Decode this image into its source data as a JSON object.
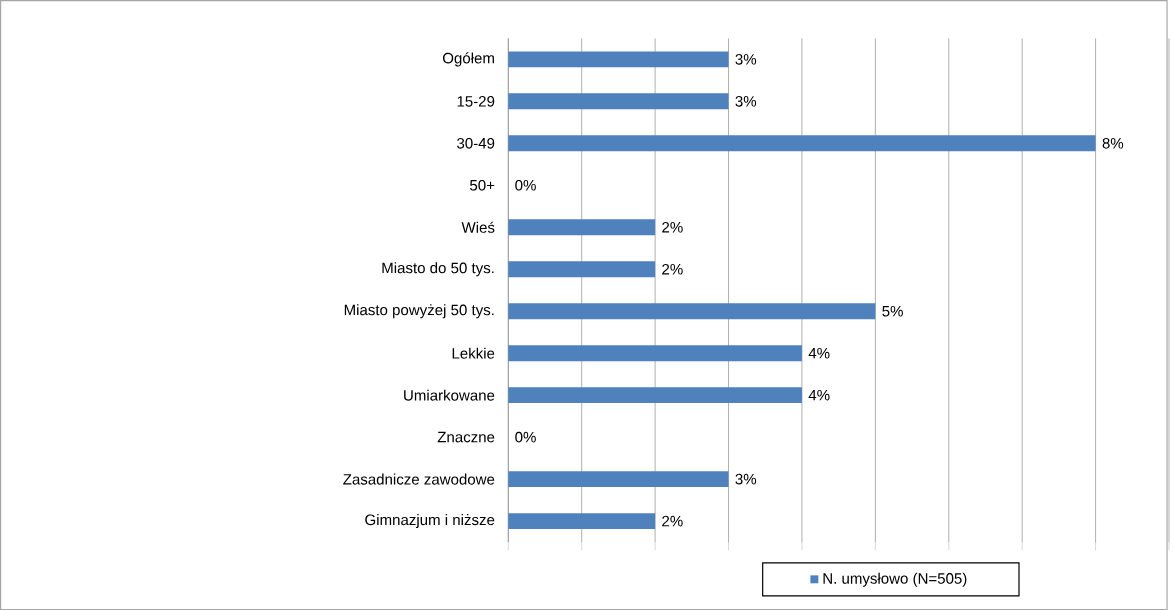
{
  "chart_data": {
    "type": "bar",
    "orientation": "horizontal",
    "categories": [
      "Ogółem",
      "15-29",
      "30-49",
      "50+",
      "Wieś",
      "Miasto do 50 tys.",
      "Miasto powyżej 50 tys.",
      "Lekkie",
      "Umiarkowane",
      "Znaczne",
      "Zasadnicze zawodowe",
      "Gimnazjum i niższe"
    ],
    "series": [
      {
        "name": "N. umysłowo (N=505)",
        "color": "#4f81bd",
        "values": [
          3,
          3,
          8,
          0,
          2,
          2,
          5,
          4,
          4,
          0,
          3,
          2
        ],
        "value_labels": [
          "3%",
          "3%",
          "8%",
          "0%",
          "2%",
          "2%",
          "5%",
          "4%",
          "4%",
          "0%",
          "3%",
          "2%"
        ]
      }
    ],
    "xlim": [
      0,
      9
    ],
    "xticks": [
      {
        "value": 0,
        "label": null
      },
      {
        "value": 1,
        "label": null
      },
      {
        "value": 2,
        "label": null
      },
      {
        "value": 3,
        "label": null
      },
      {
        "value": 4,
        "label": null
      },
      {
        "value": 5,
        "label": null
      },
      {
        "value": 6,
        "label": null
      },
      {
        "value": 7,
        "label": null
      },
      {
        "value": 8,
        "label": null
      },
      {
        "value": 9,
        "label": null
      }
    ],
    "tick_labels": "y",
    "grid": "x",
    "legend": "bottom"
  }
}
